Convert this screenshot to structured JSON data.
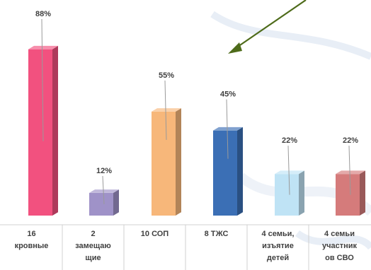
{
  "chart_data": {
    "type": "bar",
    "bar_style": "3d",
    "categories": [
      [
        "16",
        "кровные"
      ],
      [
        "2",
        "замещаю",
        "щие"
      ],
      [
        "10 СОП"
      ],
      [
        "8 ТЖС"
      ],
      [
        "4 семьи,",
        "изъятие",
        "детей"
      ],
      [
        "4 семьи",
        "участник",
        "ов СВО"
      ]
    ],
    "values": [
      88,
      12,
      55,
      45,
      22,
      22
    ],
    "data_labels": [
      "88%",
      "12%",
      "55%",
      "45%",
      "22%",
      "22%"
    ],
    "colors": [
      "#f2517f",
      "#9f92c8",
      "#f7b77a",
      "#3b6fb5",
      "#bfe3f5",
      "#d57b7b"
    ],
    "ylim": [
      0,
      100
    ],
    "grid": false,
    "legend": "none",
    "annotation_arrow_color": "#4e6b1a",
    "title": "",
    "xlabel": "",
    "ylabel": ""
  }
}
